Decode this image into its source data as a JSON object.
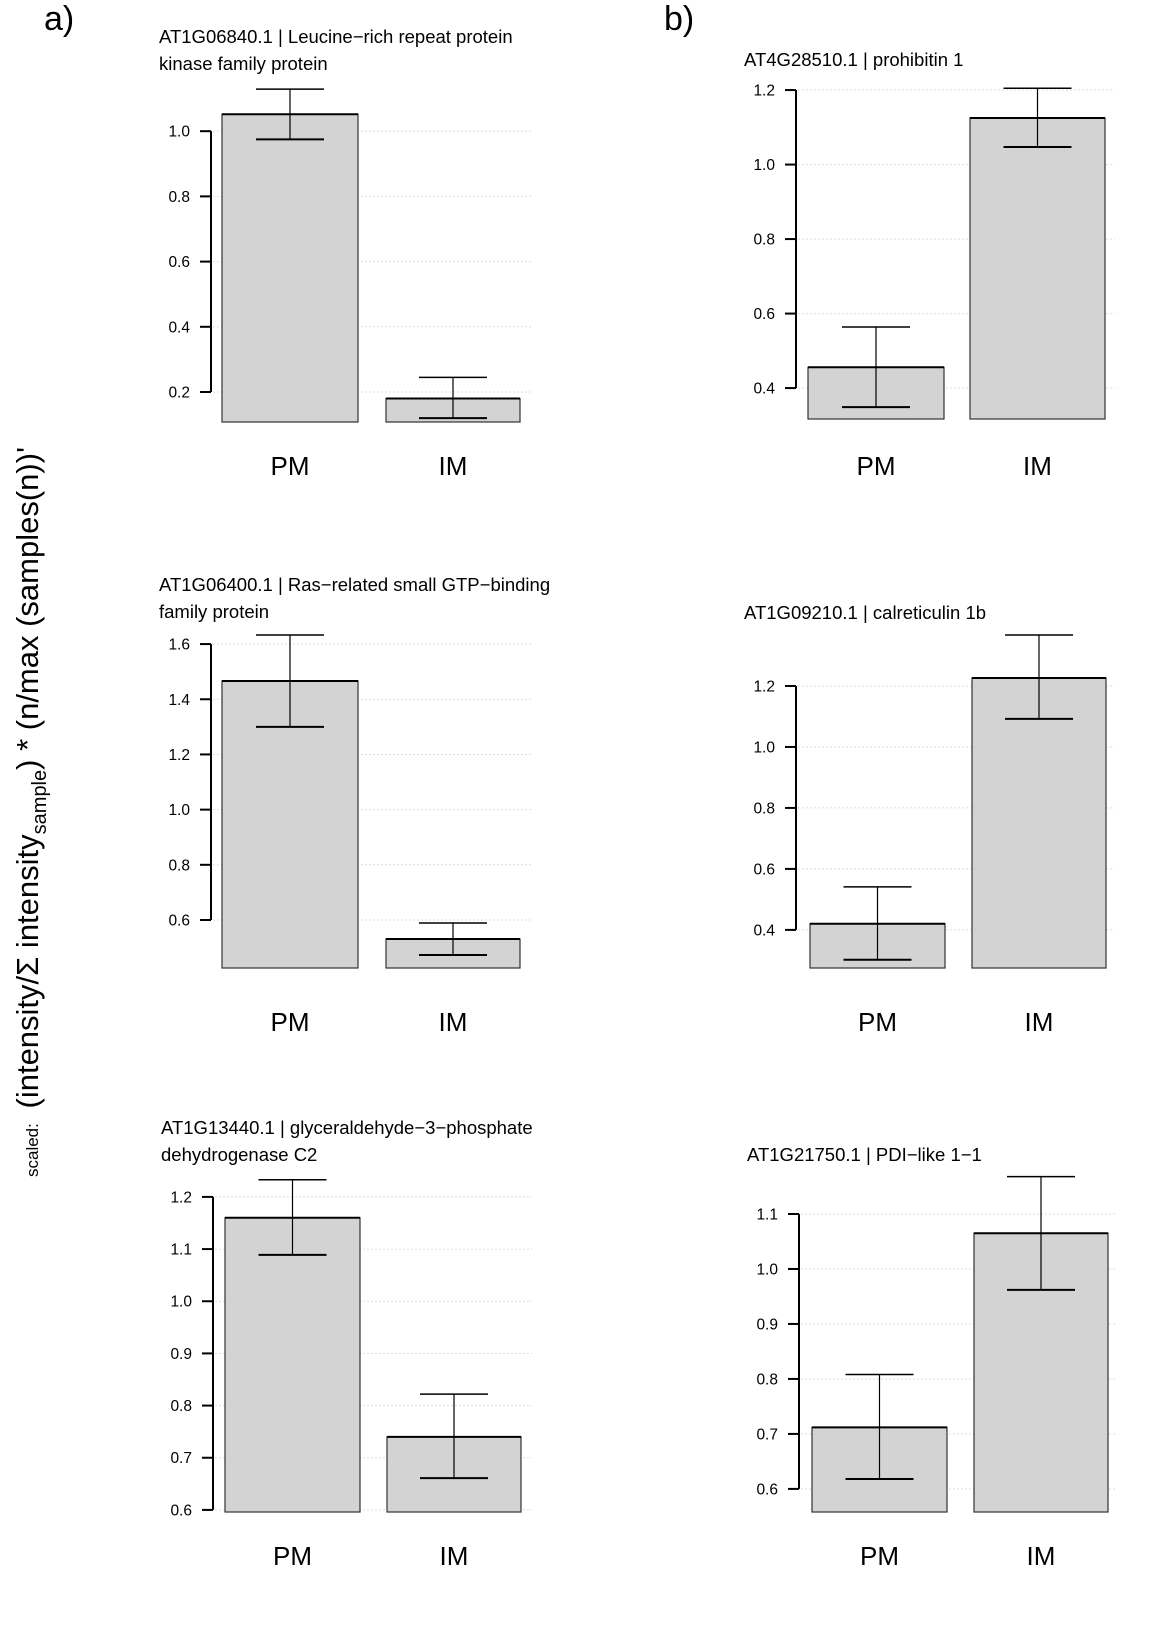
{
  "panel_labels": [
    "a)",
    "b)"
  ],
  "ylabel": {
    "prefix": "scaled:",
    "part1": "(intensity/Σ intensity",
    "subscript": "sample",
    "part2": ") * (n/max (samples(n))",
    "part3": "'"
  },
  "colors": {
    "bar_fill": "#d3d3d3",
    "bar_stroke": "#333333",
    "grid": "#dddddd"
  },
  "chart_data": [
    {
      "type": "bar",
      "title": [
        "AT1G06840.1 | Leucine−rich repeat protein",
        "kinase family protein"
      ],
      "categories": [
        "PM",
        "IM"
      ],
      "values": [
        1.052,
        0.18
      ],
      "error_upper": [
        1.129,
        0.245
      ],
      "error_lower": [
        0.975,
        0.12
      ],
      "yticks": [
        0.2,
        0.4,
        0.6,
        0.8,
        1.0
      ],
      "ytick_labels": [
        "0.2",
        "0.4",
        "0.6",
        "0.8",
        "1.0"
      ],
      "ylim": [
        0.108,
        1.157
      ],
      "grid": true
    },
    {
      "type": "bar",
      "title": [
        "AT1G06400.1 | Ras−related small GTP−binding",
        "family protein"
      ],
      "categories": [
        "PM",
        "IM"
      ],
      "values": [
        1.466,
        0.531
      ],
      "error_upper": [
        1.633,
        0.589
      ],
      "error_lower": [
        1.3,
        0.473
      ],
      "yticks": [
        0.6,
        0.8,
        1.0,
        1.2,
        1.4,
        1.6
      ],
      "ytick_labels": [
        "0.6",
        "0.8",
        "1.0",
        "1.2",
        "1.4",
        "1.6"
      ],
      "ylim": [
        0.426,
        1.651
      ],
      "grid": true
    },
    {
      "type": "bar",
      "title": [
        "AT1G13440.1 | glyceraldehyde−3−phosphate",
        "dehydrogenase C2"
      ],
      "categories": [
        "PM",
        "IM"
      ],
      "values": [
        1.16,
        0.74
      ],
      "error_upper": [
        1.233,
        0.822
      ],
      "error_lower": [
        1.089,
        0.661
      ],
      "yticks": [
        0.6,
        0.7,
        0.8,
        0.9,
        1.0,
        1.1,
        1.2
      ],
      "ytick_labels": [
        "0.6",
        "0.7",
        "0.8",
        "0.9",
        "1.0",
        "1.1",
        "1.2"
      ],
      "ylim": [
        0.596,
        1.242
      ],
      "grid": true
    },
    {
      "type": "bar",
      "title": [
        "AT4G28510.1 |  prohibitin 1"
      ],
      "categories": [
        "PM",
        "IM"
      ],
      "values": [
        0.456,
        1.125
      ],
      "error_upper": [
        0.564,
        1.205
      ],
      "error_lower": [
        0.349,
        1.047
      ],
      "yticks": [
        0.4,
        0.6,
        0.8,
        1.0,
        1.2
      ],
      "ytick_labels": [
        "0.4",
        "0.6",
        "0.8",
        "1.0",
        "1.2"
      ],
      "ylim": [
        0.317,
        1.227
      ],
      "grid": true
    },
    {
      "type": "bar",
      "title": [
        "AT1G09210.1 |  calreticulin 1b"
      ],
      "categories": [
        "PM",
        "IM"
      ],
      "values": [
        0.42,
        1.226
      ],
      "error_upper": [
        0.541,
        1.367
      ],
      "error_lower": [
        0.302,
        1.092
      ],
      "yticks": [
        0.4,
        0.6,
        0.8,
        1.0,
        1.2
      ],
      "ytick_labels": [
        "0.4",
        "0.6",
        "0.8",
        "1.0",
        "1.2"
      ],
      "ylim": [
        0.275,
        1.4
      ],
      "grid": true
    },
    {
      "type": "bar",
      "title": [
        "AT1G21750.1 | PDI−like 1−1"
      ],
      "categories": [
        "PM",
        "IM"
      ],
      "values": [
        0.712,
        1.065
      ],
      "error_upper": [
        0.808,
        1.168
      ],
      "error_lower": [
        0.618,
        0.962
      ],
      "yticks": [
        0.6,
        0.7,
        0.8,
        0.9,
        1.0,
        1.1
      ],
      "ytick_labels": [
        "0.6",
        "0.7",
        "0.8",
        "0.9",
        "1.0",
        "1.1"
      ],
      "ylim": [
        0.558,
        1.18
      ],
      "grid": true
    }
  ]
}
